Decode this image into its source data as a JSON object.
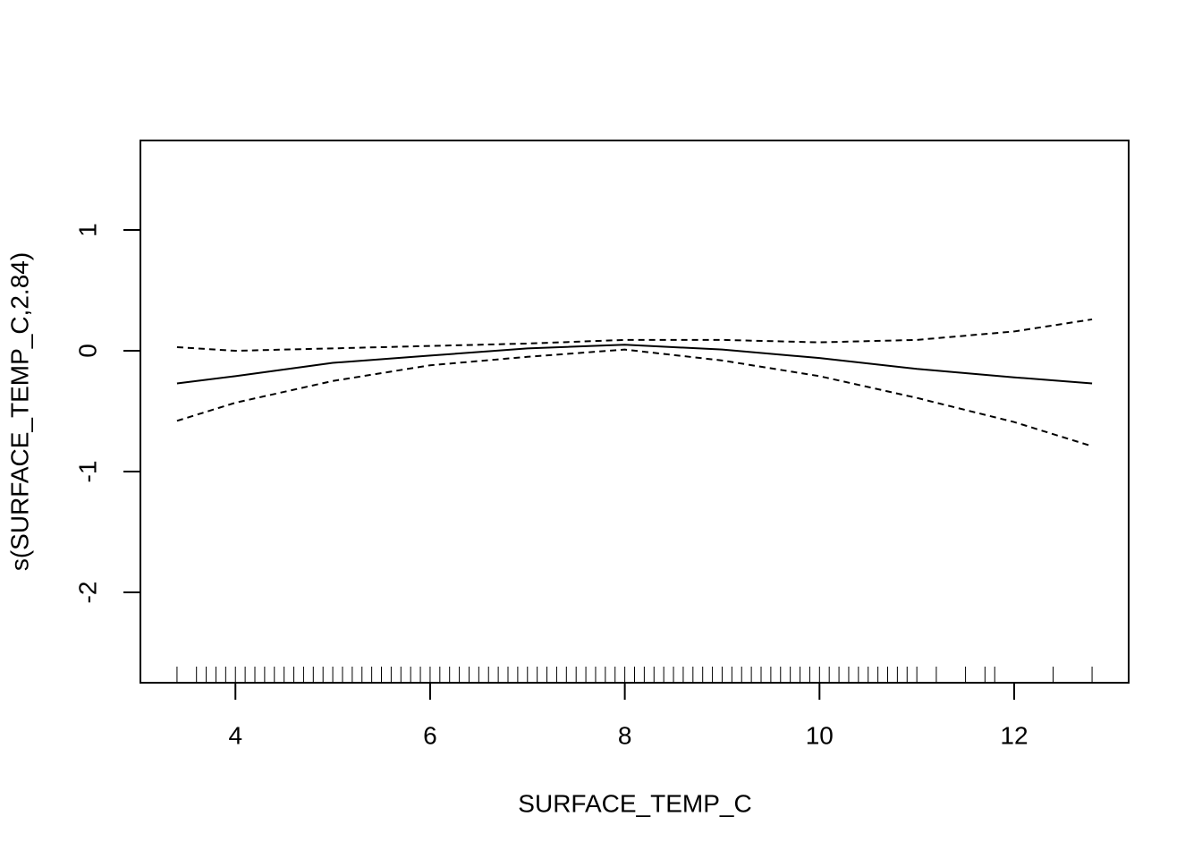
{
  "chart_data": {
    "type": "line",
    "xlabel": "SURFACE_TEMP_C",
    "ylabel": "s(SURFACE_TEMP_C,2.84)",
    "x": [
      3.4,
      4,
      5,
      6,
      7,
      8,
      9,
      10,
      11,
      12,
      12.8
    ],
    "series": [
      {
        "style": "solid",
        "color": "#000000",
        "values": [
          -0.27,
          -0.21,
          -0.1,
          -0.04,
          0.02,
          0.05,
          0.01,
          -0.06,
          -0.15,
          -0.22,
          -0.27
        ]
      },
      {
        "style": "dashed",
        "color": "#000000",
        "values": [
          0.03,
          0.0,
          0.02,
          0.04,
          0.06,
          0.09,
          0.09,
          0.07,
          0.09,
          0.16,
          0.26
        ]
      },
      {
        "style": "dashed",
        "color": "#000000",
        "values": [
          -0.58,
          -0.43,
          -0.25,
          -0.12,
          -0.05,
          0.01,
          -0.08,
          -0.21,
          -0.39,
          -0.59,
          -0.79
        ]
      }
    ],
    "rug": [
      3.4,
      3.6,
      3.7,
      3.8,
      3.9,
      4.0,
      4.1,
      4.2,
      4.3,
      4.4,
      4.5,
      4.6,
      4.7,
      4.8,
      4.9,
      5.0,
      5.1,
      5.2,
      5.3,
      5.4,
      5.5,
      5.6,
      5.7,
      5.8,
      5.9,
      6.0,
      6.1,
      6.2,
      6.3,
      6.4,
      6.5,
      6.6,
      6.7,
      6.8,
      6.9,
      7.0,
      7.1,
      7.2,
      7.3,
      7.4,
      7.5,
      7.6,
      7.7,
      7.8,
      7.9,
      8.0,
      8.1,
      8.2,
      8.3,
      8.4,
      8.5,
      8.6,
      8.7,
      8.8,
      8.9,
      9.0,
      9.1,
      9.2,
      9.3,
      9.4,
      9.5,
      9.6,
      9.7,
      9.8,
      9.9,
      10.0,
      10.1,
      10.2,
      10.3,
      10.4,
      10.5,
      10.6,
      10.7,
      10.8,
      10.9,
      11.0,
      11.2,
      11.5,
      11.7,
      11.8,
      12.4,
      12.8
    ],
    "xlim": [
      3.024,
      13.176
    ],
    "xticks": [
      4,
      6,
      8,
      10,
      12
    ],
    "ylim": [
      -2.748,
      1.741
    ],
    "yticks": [
      -2,
      -1,
      0,
      1
    ]
  }
}
